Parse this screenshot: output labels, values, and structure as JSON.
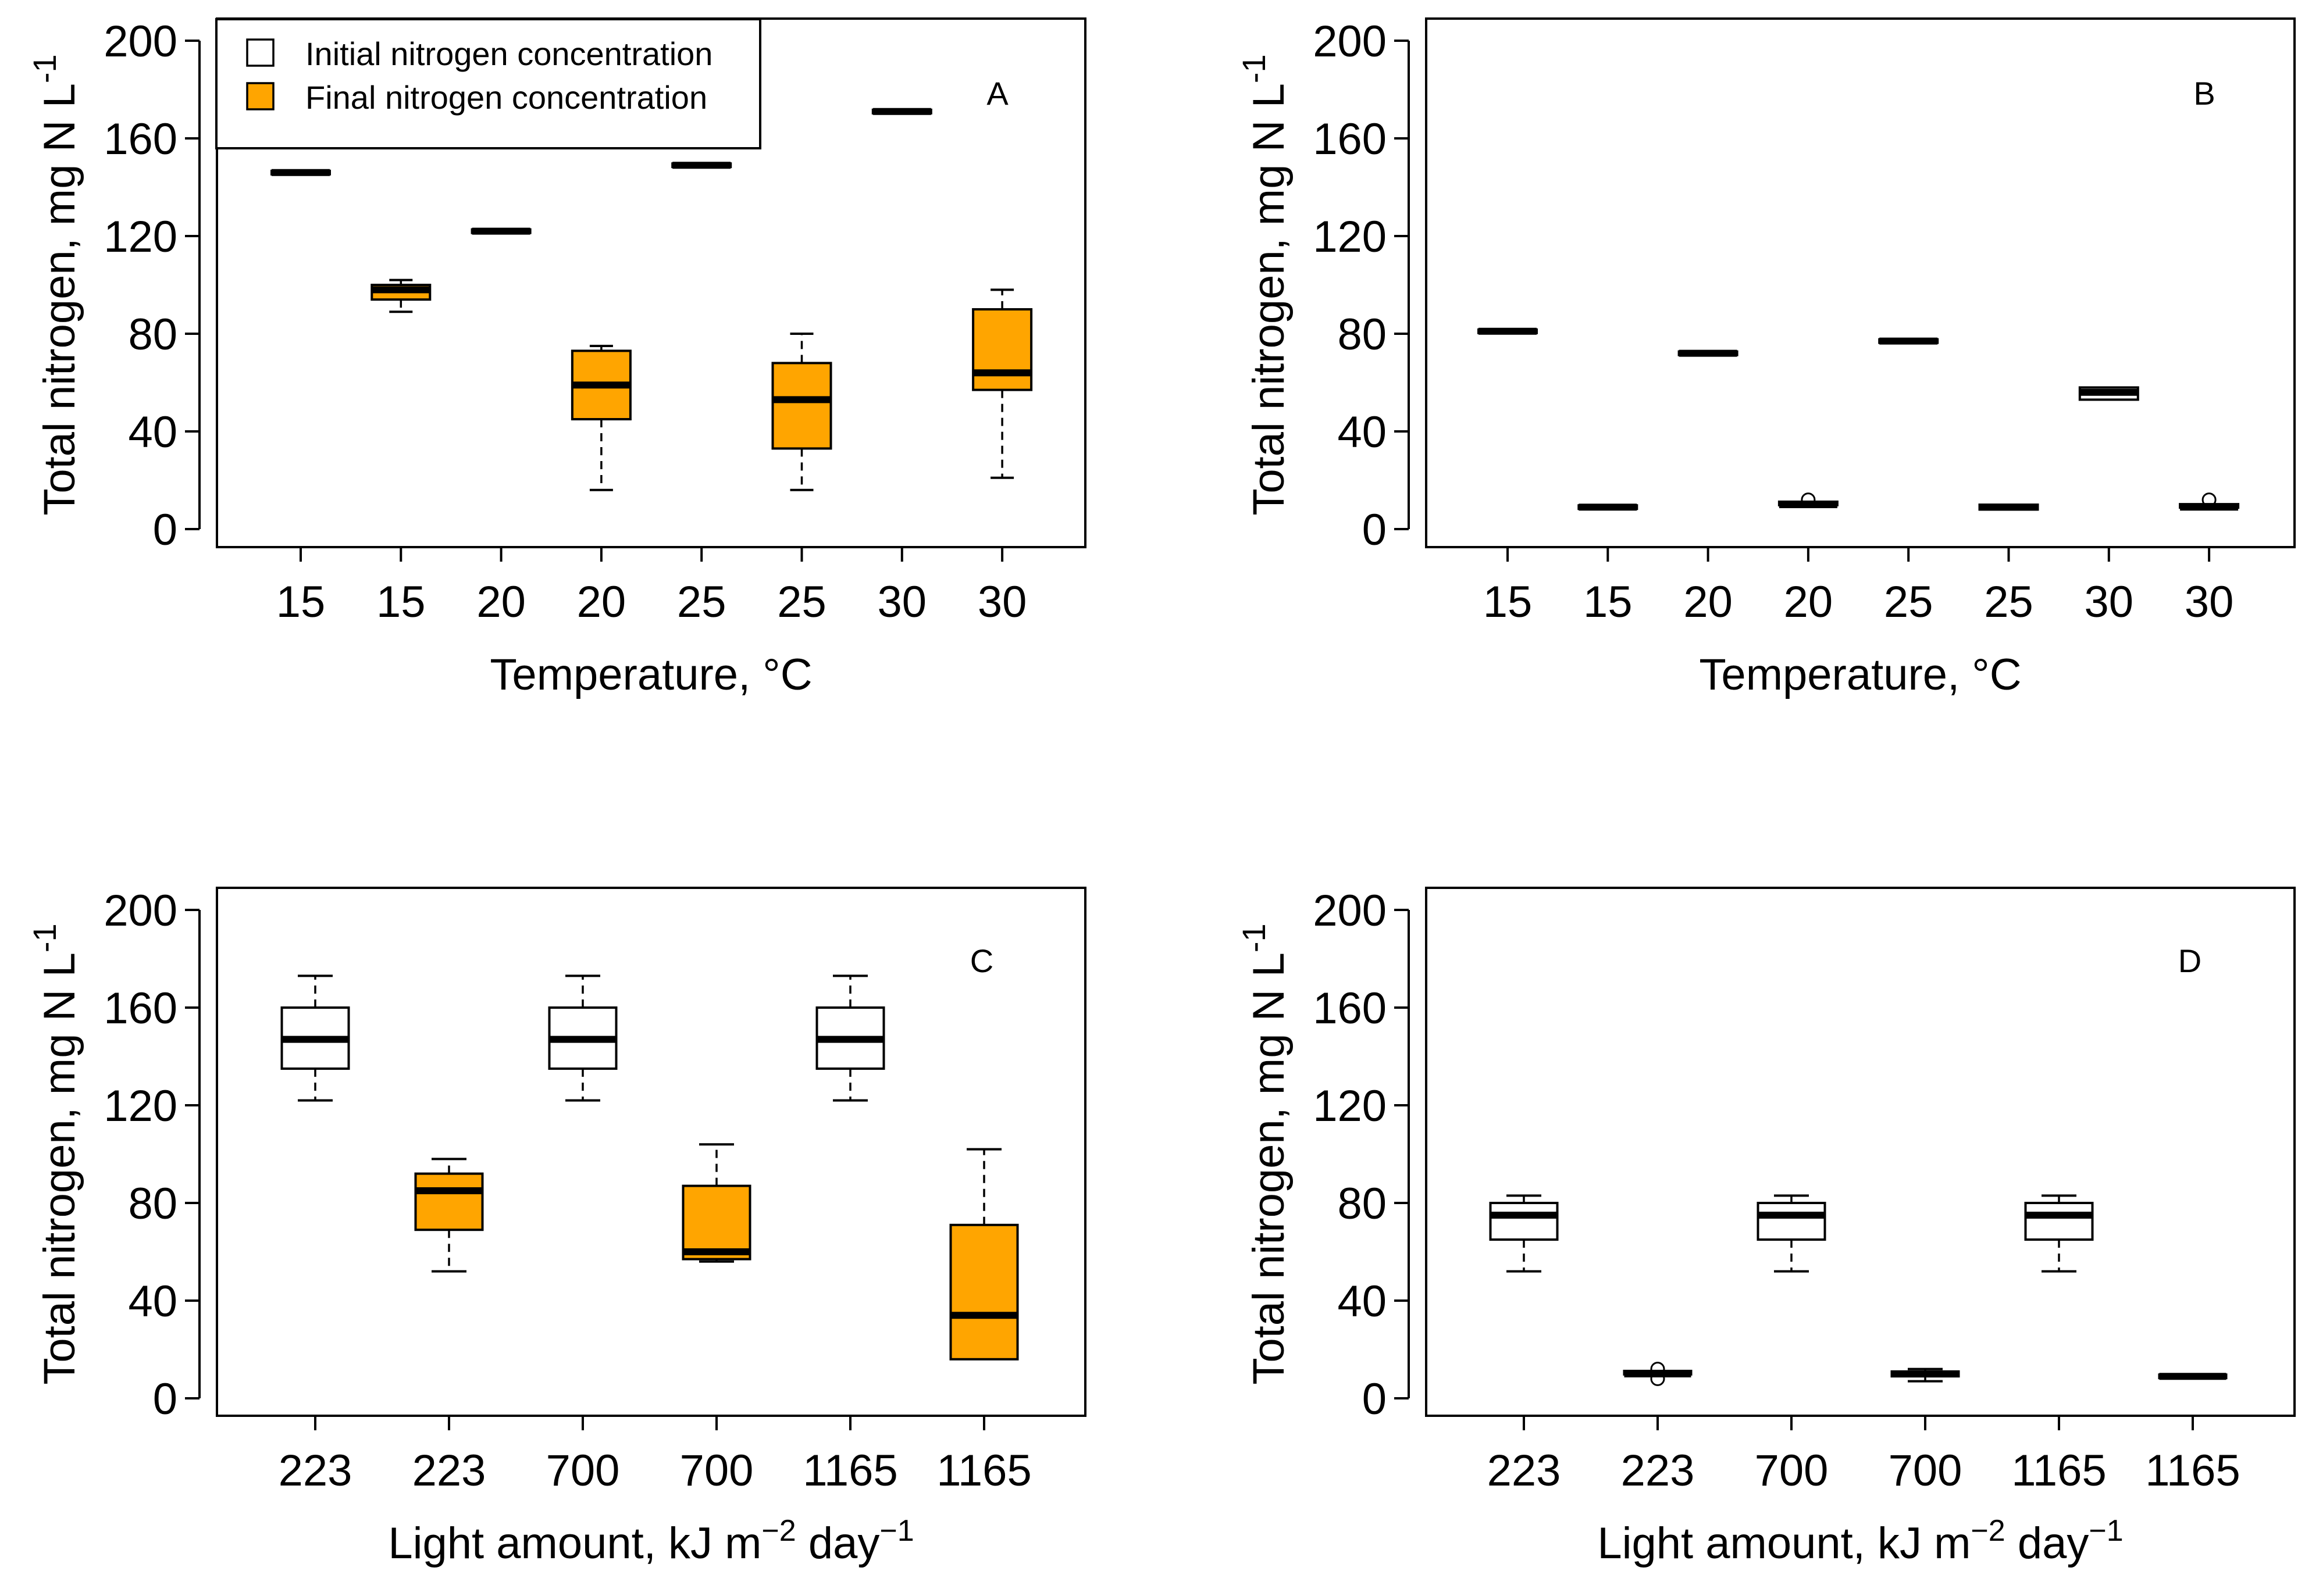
{
  "figure": {
    "panels": [
      {
        "id": "A",
        "tag": "A",
        "xlabel": "Temperature, °C",
        "ylabel": {
          "main": "Total nitrogen, mg N L",
          "sup": "-1"
        },
        "xlabel_sup": []
      },
      {
        "id": "B",
        "tag": "B",
        "xlabel": "Temperature, °C",
        "ylabel": {
          "main": "Total nitrogen, mg N L",
          "sup": "-1"
        },
        "xlabel_sup": []
      },
      {
        "id": "C",
        "tag": "C",
        "xlabel_parts": [
          "Light amount, kJ m",
          "−2",
          " day",
          "−1"
        ],
        "ylabel": {
          "main": "Total nitrogen, mg N L",
          "sup": "-1"
        }
      },
      {
        "id": "D",
        "tag": "D",
        "xlabel_parts": [
          "Light amount, kJ  m",
          "−2",
          " day",
          "−1"
        ],
        "ylabel": {
          "main": "Total nitrogen, mg N L",
          "sup": "-1"
        }
      }
    ],
    "legend": {
      "items": [
        {
          "label": "Initial nitrogen concentration",
          "color": "#ffffff"
        },
        {
          "label": "Final nitrogen concentration",
          "color": "#ffa500"
        }
      ]
    }
  },
  "chart_data": [
    {
      "type": "boxplot",
      "panel": "A",
      "title": "",
      "xlabel": "Temperature, °C",
      "ylabel": "Total nitrogen, mg N L-1",
      "ylim": [
        0,
        200
      ],
      "yticks": [
        0,
        40,
        80,
        120,
        160,
        200
      ],
      "categories": [
        "15",
        "15",
        "20",
        "20",
        "25",
        "25",
        "30",
        "30"
      ],
      "series": [
        {
          "name": "Initial nitrogen concentration",
          "color": "#ffffff",
          "boxes": [
            {
              "category_index": 0,
              "min": 146,
              "q1": 146,
              "median": 146,
              "q3": 146,
              "max": 146
            },
            {
              "category_index": 2,
              "min": 122,
              "q1": 122,
              "median": 122,
              "q3": 122,
              "max": 122
            },
            {
              "category_index": 4,
              "min": 149,
              "q1": 149,
              "median": 149,
              "q3": 149,
              "max": 149
            },
            {
              "category_index": 6,
              "min": 171,
              "q1": 171,
              "median": 171,
              "q3": 171,
              "max": 171
            }
          ]
        },
        {
          "name": "Final nitrogen concentration",
          "color": "#ffa500",
          "boxes": [
            {
              "category_index": 1,
              "min": 89,
              "q1": 94,
              "median": 98,
              "q3": 100,
              "max": 102
            },
            {
              "category_index": 3,
              "min": 16,
              "q1": 45,
              "median": 59,
              "q3": 73,
              "max": 75
            },
            {
              "category_index": 5,
              "min": 16,
              "q1": 33,
              "median": 53,
              "q3": 68,
              "max": 80
            },
            {
              "category_index": 7,
              "min": 21,
              "q1": 57,
              "median": 64,
              "q3": 90,
              "max": 98
            }
          ]
        }
      ]
    },
    {
      "type": "boxplot",
      "panel": "B",
      "title": "",
      "xlabel": "Temperature, °C",
      "ylabel": "Total nitrogen, mg N L-1",
      "ylim": [
        0,
        200
      ],
      "yticks": [
        0,
        40,
        80,
        120,
        160,
        200
      ],
      "categories": [
        "15",
        "15",
        "20",
        "20",
        "25",
        "25",
        "30",
        "30"
      ],
      "series": [
        {
          "name": "Initial nitrogen concentration",
          "color": "#ffffff",
          "boxes": [
            {
              "category_index": 0,
              "min": 81,
              "q1": 81,
              "median": 81,
              "q3": 81,
              "max": 81
            },
            {
              "category_index": 2,
              "min": 72,
              "q1": 72,
              "median": 72,
              "q3": 72,
              "max": 72
            },
            {
              "category_index": 4,
              "min": 77,
              "q1": 77,
              "median": 77,
              "q3": 77,
              "max": 77
            },
            {
              "category_index": 6,
              "min": 53,
              "q1": 53,
              "median": 56,
              "q3": 58,
              "max": 58
            }
          ]
        },
        {
          "name": "Final nitrogen concentration",
          "color": "#ffa500",
          "boxes": [
            {
              "category_index": 1,
              "min": 9,
              "q1": 9,
              "median": 9,
              "q3": 9,
              "max": 9
            },
            {
              "category_index": 3,
              "min": 10,
              "q1": 10,
              "median": 10,
              "q3": 11,
              "max": 11,
              "outliers": [
                12
              ]
            },
            {
              "category_index": 5,
              "min": 8,
              "q1": 8,
              "median": 9,
              "q3": 10,
              "max": 10
            },
            {
              "category_index": 7,
              "min": 9,
              "q1": 9,
              "median": 9,
              "q3": 10,
              "max": 10,
              "outliers": [
                12
              ]
            }
          ]
        }
      ]
    },
    {
      "type": "boxplot",
      "panel": "C",
      "title": "",
      "xlabel": "Light amount, kJ m-2 day-1",
      "ylabel": "Total nitrogen, mg N L-1",
      "ylim": [
        0,
        200
      ],
      "yticks": [
        0,
        40,
        80,
        120,
        160,
        200
      ],
      "categories": [
        "223",
        "223",
        "700",
        "700",
        "1165",
        "1165"
      ],
      "series": [
        {
          "name": "Initial nitrogen concentration",
          "color": "#ffffff",
          "boxes": [
            {
              "category_index": 0,
              "min": 122,
              "q1": 135,
              "median": 147,
              "q3": 160,
              "max": 173
            },
            {
              "category_index": 2,
              "min": 122,
              "q1": 135,
              "median": 147,
              "q3": 160,
              "max": 173
            },
            {
              "category_index": 4,
              "min": 122,
              "q1": 135,
              "median": 147,
              "q3": 160,
              "max": 173
            }
          ]
        },
        {
          "name": "Final nitrogen concentration",
          "color": "#ffa500",
          "boxes": [
            {
              "category_index": 1,
              "min": 52,
              "q1": 69,
              "median": 85,
              "q3": 92,
              "max": 98
            },
            {
              "category_index": 3,
              "min": 56,
              "q1": 57,
              "median": 60,
              "q3": 87,
              "max": 104
            },
            {
              "category_index": 5,
              "min": 16,
              "q1": 16,
              "median": 34,
              "q3": 71,
              "max": 102
            }
          ]
        }
      ]
    },
    {
      "type": "boxplot",
      "panel": "D",
      "title": "",
      "xlabel": "Light amount, kJ m-2 day-1",
      "ylabel": "Total nitrogen, mg N L-1",
      "ylim": [
        0,
        200
      ],
      "yticks": [
        0,
        40,
        80,
        120,
        160,
        200
      ],
      "categories": [
        "223",
        "223",
        "700",
        "700",
        "1165",
        "1165"
      ],
      "series": [
        {
          "name": "Initial nitrogen concentration",
          "color": "#ffffff",
          "boxes": [
            {
              "category_index": 0,
              "min": 52,
              "q1": 65,
              "median": 75,
              "q3": 80,
              "max": 83
            },
            {
              "category_index": 2,
              "min": 52,
              "q1": 65,
              "median": 75,
              "q3": 80,
              "max": 83
            },
            {
              "category_index": 4,
              "min": 52,
              "q1": 65,
              "median": 75,
              "q3": 80,
              "max": 83
            }
          ]
        },
        {
          "name": "Final nitrogen concentration",
          "color": "#ffa500",
          "boxes": [
            {
              "category_index": 1,
              "min": 10,
              "q1": 10,
              "median": 10,
              "q3": 11,
              "max": 11,
              "outliers": [
                8,
                12
              ]
            },
            {
              "category_index": 3,
              "min": 7,
              "q1": 9,
              "median": 10,
              "q3": 11,
              "max": 12
            },
            {
              "category_index": 5,
              "min": 9,
              "q1": 9,
              "median": 9,
              "q3": 9,
              "max": 9
            }
          ]
        }
      ]
    }
  ]
}
